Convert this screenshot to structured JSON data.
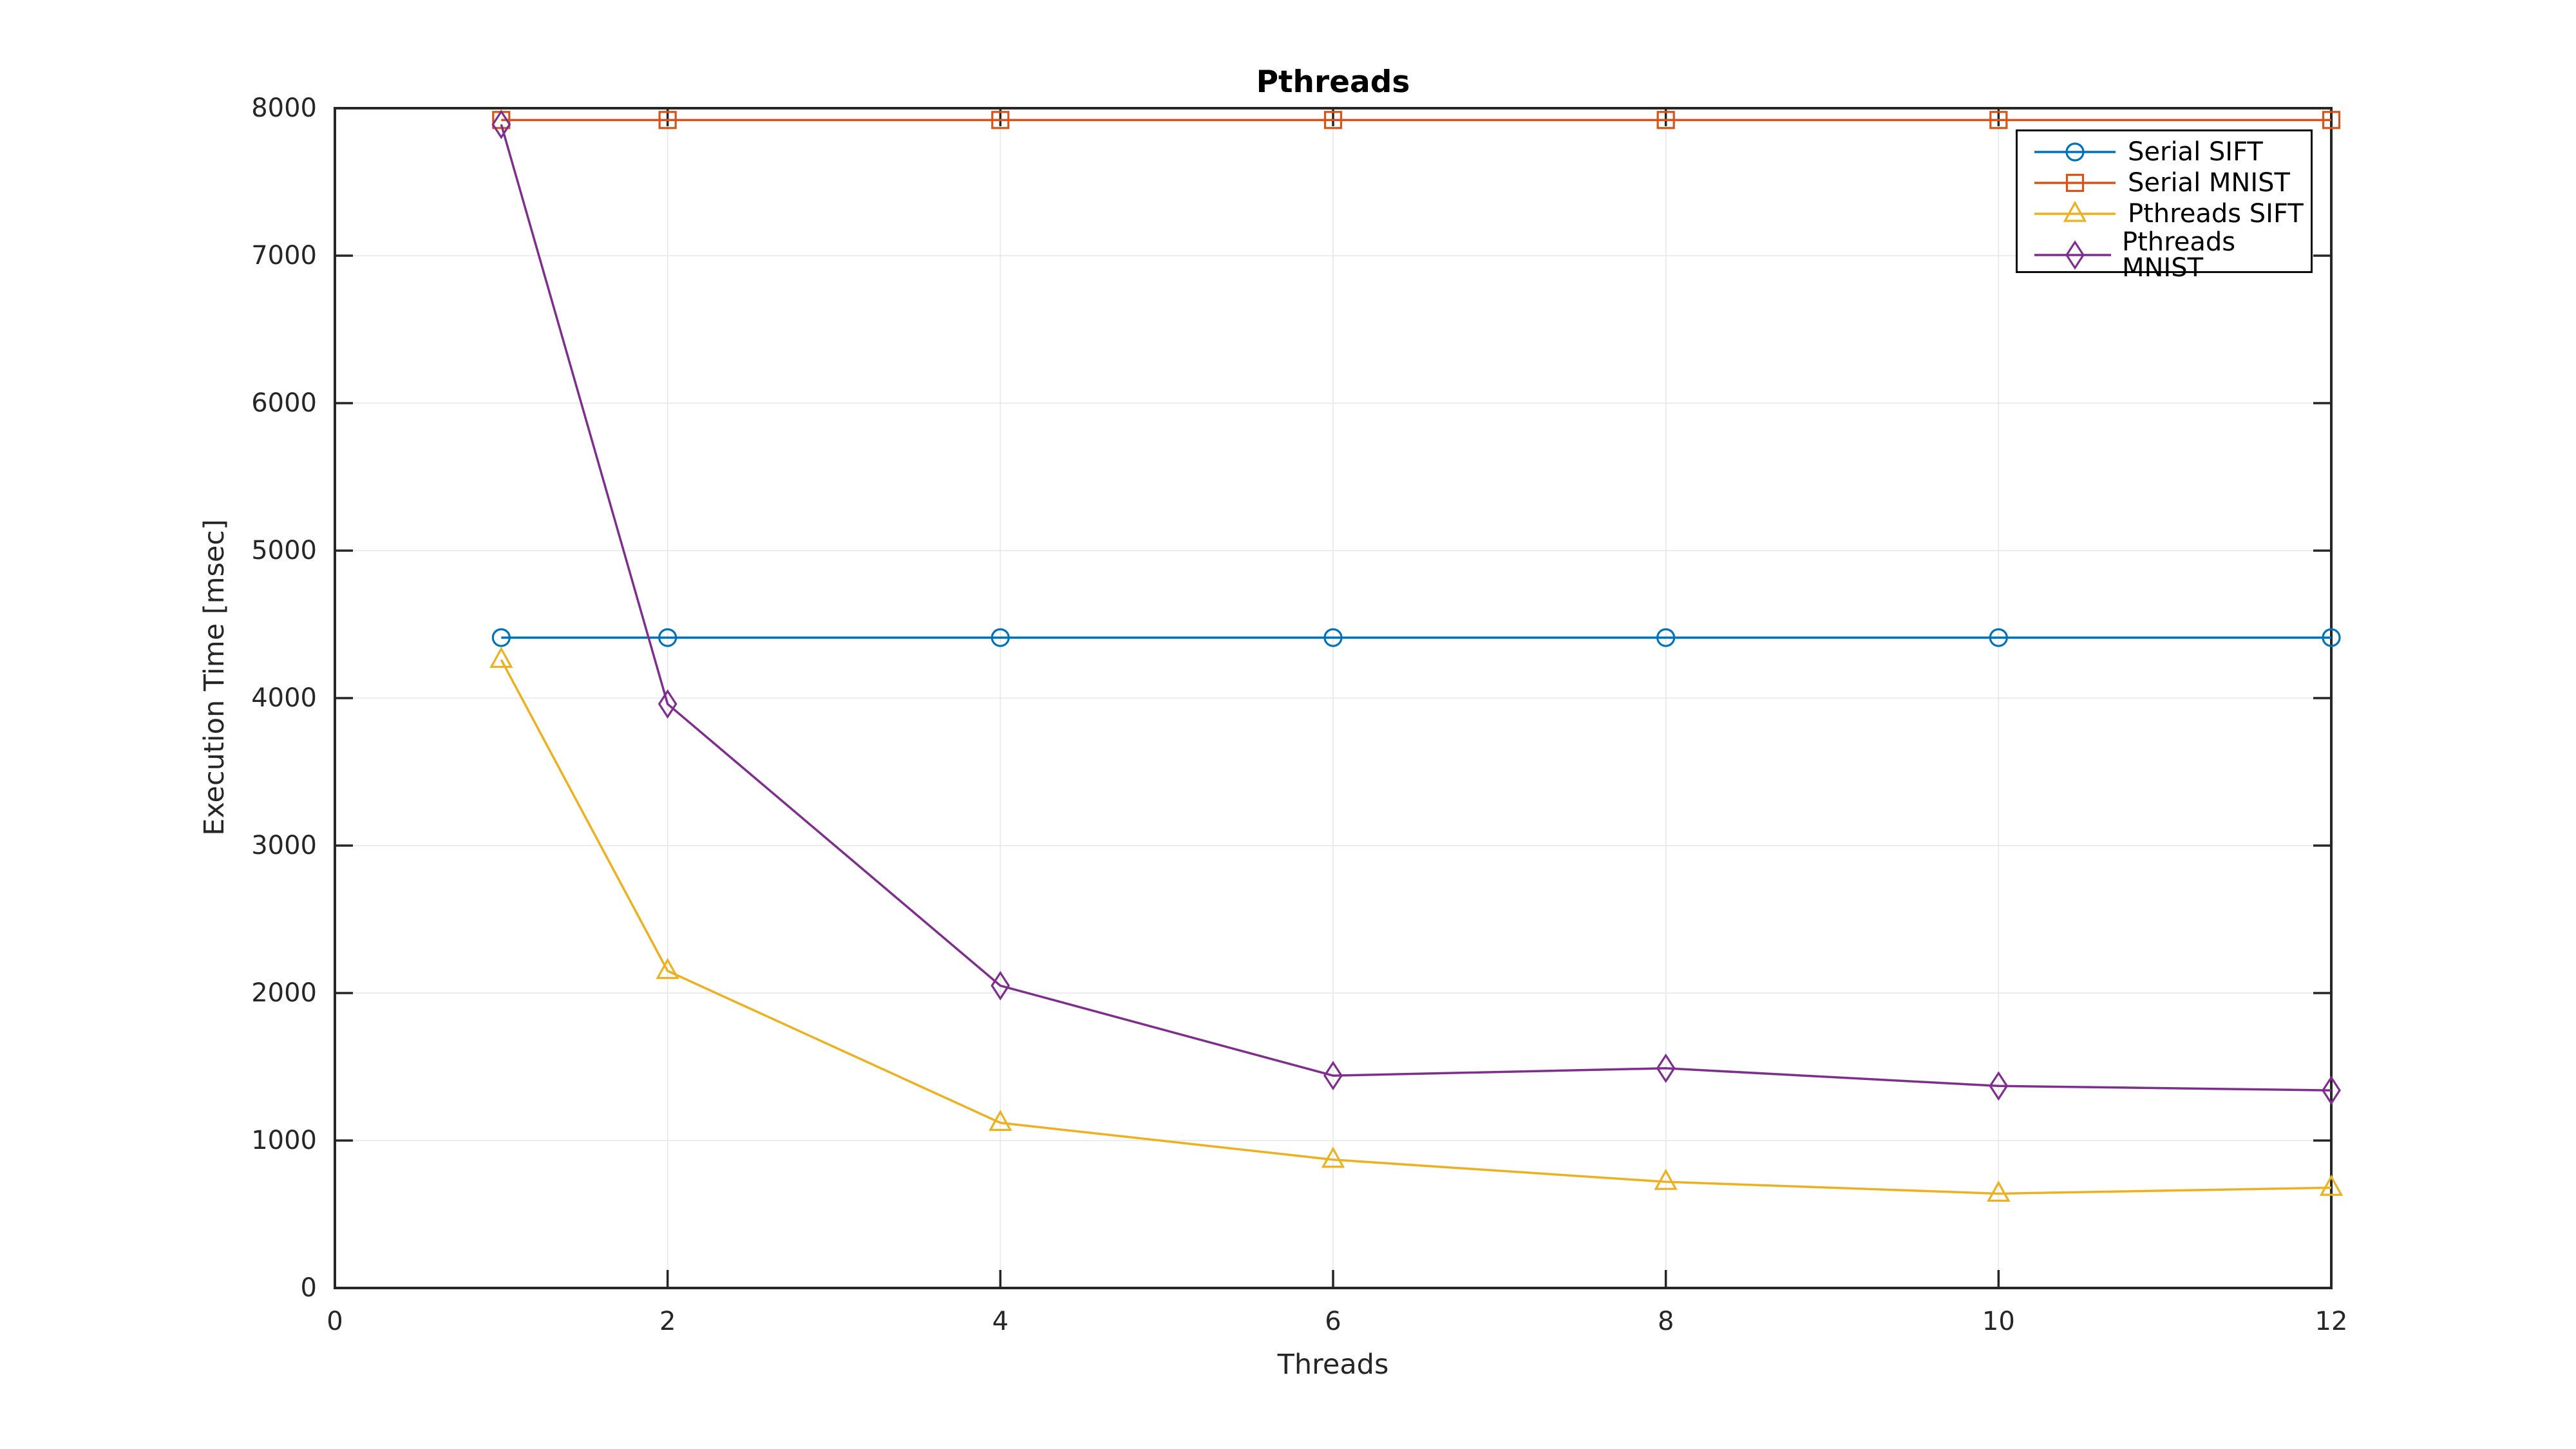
{
  "chart_data": {
    "type": "line",
    "title": "Pthreads",
    "xlabel": "Threads",
    "ylabel": "Execution Time [msec]",
    "x": [
      1,
      2,
      4,
      6,
      8,
      10,
      12
    ],
    "xlim": [
      0,
      12
    ],
    "ylim": [
      0,
      8000
    ],
    "x_ticks": [
      0,
      2,
      4,
      6,
      8,
      10,
      12
    ],
    "y_ticks": [
      0,
      1000,
      2000,
      3000,
      4000,
      5000,
      6000,
      7000,
      8000
    ],
    "grid": true,
    "legend_position": "upper right",
    "axis_color": "#262626",
    "grid_color": "#e6e6e6",
    "background": "#ffffff",
    "series": [
      {
        "name": "Serial SIFT",
        "color": "#0072BD",
        "marker": "circle",
        "values": [
          4410,
          4410,
          4410,
          4410,
          4410,
          4410,
          4410
        ]
      },
      {
        "name": "Serial MNIST",
        "color": "#D95319",
        "marker": "square",
        "values": [
          7920,
          7920,
          7920,
          7920,
          7920,
          7920,
          7920
        ]
      },
      {
        "name": "Pthreads SIFT",
        "color": "#EDB120",
        "marker": "triangle",
        "values": [
          4260,
          2150,
          1120,
          870,
          720,
          640,
          680
        ]
      },
      {
        "name": "Pthreads MNIST",
        "color": "#7E2F8E",
        "marker": "diamond",
        "values": [
          7890,
          3960,
          2050,
          1440,
          1490,
          1370,
          1340
        ]
      }
    ]
  }
}
